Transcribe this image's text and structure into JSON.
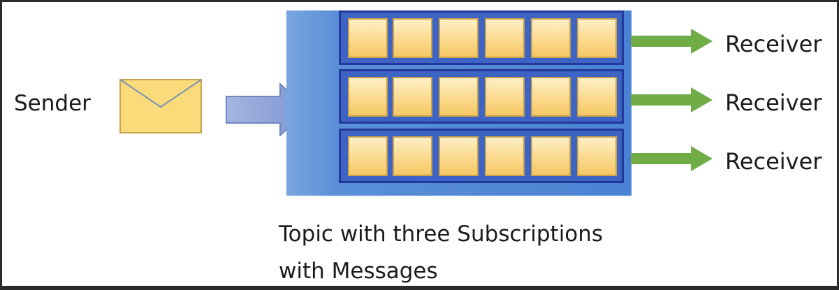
{
  "diagram": {
    "sender_label": "Sender",
    "receiver_labels": [
      "Receiver",
      "Receiver",
      "Receiver"
    ],
    "caption_lines": [
      "Topic with three Subscriptions",
      "with Messages"
    ],
    "subscription_count": 3,
    "messages_per_subscription": 6,
    "icons": {
      "sender": "envelope-icon",
      "send_arrow": "block-arrow-right-icon",
      "receiver_arrow": "arrow-right-icon"
    },
    "colors": {
      "topic_fill": "#4a83d3",
      "subscription_fill": "#3d64c4",
      "subscription_border": "#23389a",
      "message_fill": "#fbd98d",
      "envelope_fill": "#f9db7a",
      "send_arrow_fill": "#94a8d8",
      "receiver_arrow_fill": "#70ad47"
    }
  }
}
